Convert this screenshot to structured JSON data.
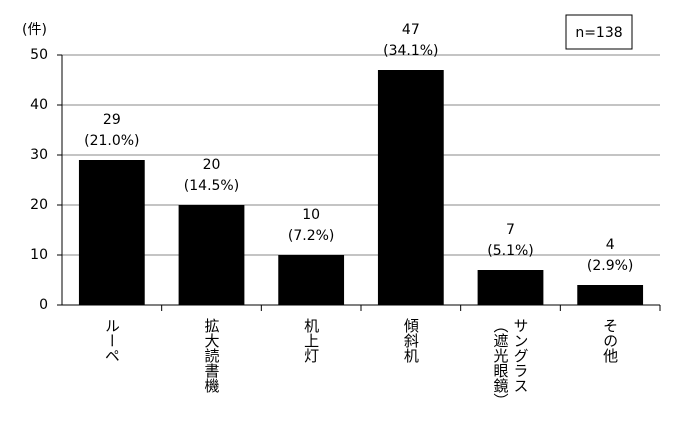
{
  "chart_data": {
    "type": "bar",
    "y_label": "(件)",
    "annotation": "n=138",
    "categories": [
      "ルーペ",
      "拡大読書機",
      "机上灯",
      "傾斜机",
      "サングラス\n（遮光眼鏡）",
      "その他"
    ],
    "values": [
      29,
      20,
      10,
      47,
      7,
      4
    ],
    "percentages": [
      21.0,
      14.5,
      7.2,
      34.1,
      5.1,
      2.9
    ],
    "percentage_labels": [
      "(21.0%)",
      "(14.5%)",
      "(7.2%)",
      "(34.1%)",
      "(5.1%)",
      "(2.9%)"
    ],
    "color": "#000000",
    "ylim": [
      0,
      50
    ],
    "yticks": [
      0,
      10,
      20,
      30,
      40,
      50
    ],
    "grid": true
  }
}
